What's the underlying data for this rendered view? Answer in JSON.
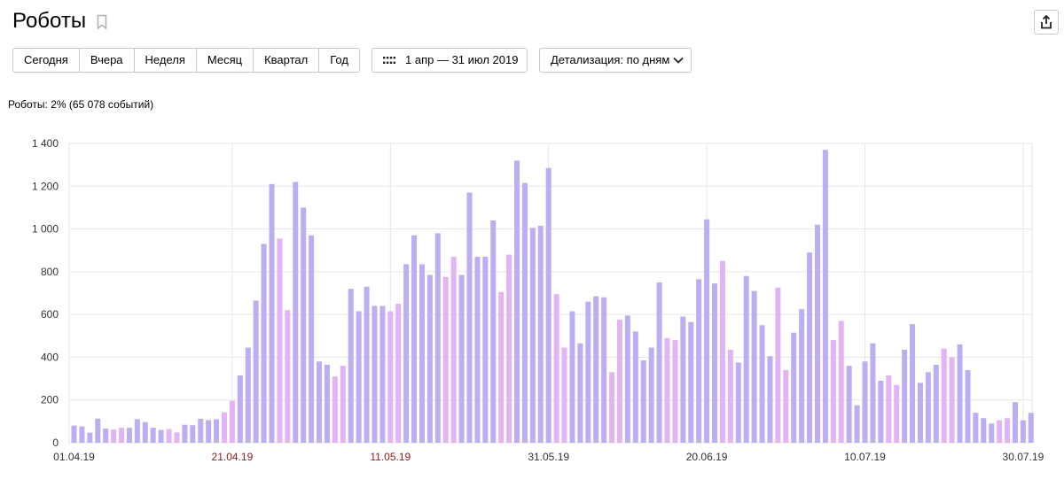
{
  "page": {
    "title": "Роботы",
    "summary": "Роботы: 2% (65 078 событий)"
  },
  "toolbar": {
    "periods": [
      "Сегодня",
      "Вчера",
      "Неделя",
      "Месяц",
      "Квартал",
      "Год"
    ],
    "date_range": "1 апр — 31 июл 2019",
    "detail": "Детализация: по дням"
  },
  "icons": {
    "bookmark": "bookmark-icon",
    "share": "share-icon",
    "calendar": "calendar-icon",
    "chevron": "chevron-down-icon"
  },
  "colors": {
    "weekday": "#bcaef0",
    "weekend": "#e2b4f3",
    "grid": "#e6e6e6",
    "axis_text": "#333333",
    "weekend_date_label": "#8e1d1d"
  },
  "chart_data": {
    "type": "bar",
    "title": "",
    "xlabel": "",
    "ylabel": "",
    "ylim": [
      0,
      1400
    ],
    "y_ticks": [
      0,
      200,
      400,
      600,
      800,
      1000,
      1200,
      1400
    ],
    "y_tick_labels": [
      "0",
      "200",
      "400",
      "600",
      "800",
      "1 000",
      "1 200",
      "1 400"
    ],
    "grid": true,
    "x_tick_labels": [
      {
        "index": 0,
        "label": "01.04.19",
        "weekend": false
      },
      {
        "index": 20,
        "label": "21.04.19",
        "weekend": true
      },
      {
        "index": 40,
        "label": "11.05.19",
        "weekend": true
      },
      {
        "index": 60,
        "label": "31.05.19",
        "weekend": false
      },
      {
        "index": 80,
        "label": "20.06.19",
        "weekend": false
      },
      {
        "index": 100,
        "label": "10.07.19",
        "weekend": false
      },
      {
        "index": 120,
        "label": "30.07.19",
        "weekend": false
      }
    ],
    "series": [
      {
        "start_date": "2019-04-01",
        "values": [
          80,
          76,
          47,
          113,
          66,
          62,
          70,
          70,
          110,
          96,
          70,
          60,
          64,
          48,
          84,
          82,
          112,
          106,
          110,
          142,
          196,
          315,
          445,
          665,
          930,
          1210,
          955,
          620,
          1220,
          1100,
          970,
          380,
          365,
          310,
          360,
          720,
          615,
          730,
          640,
          640,
          615,
          650,
          835,
          970,
          835,
          785,
          980,
          775,
          870,
          785,
          1170,
          870,
          870,
          1040,
          705,
          880,
          1320,
          1215,
          1005,
          1015,
          1285,
          695,
          445,
          615,
          465,
          660,
          685,
          680,
          330,
          575,
          595,
          520,
          385,
          445,
          750,
          490,
          480,
          590,
          565,
          765,
          1045,
          745,
          850,
          435,
          375,
          780,
          710,
          550,
          405,
          725,
          340,
          515,
          625,
          890,
          1020,
          1370,
          480,
          570,
          360,
          175,
          380,
          465,
          290,
          315,
          270,
          435,
          555,
          280,
          330,
          365,
          440,
          400,
          460,
          340,
          140,
          115,
          90,
          105,
          115,
          190,
          105,
          140
        ]
      }
    ]
  }
}
